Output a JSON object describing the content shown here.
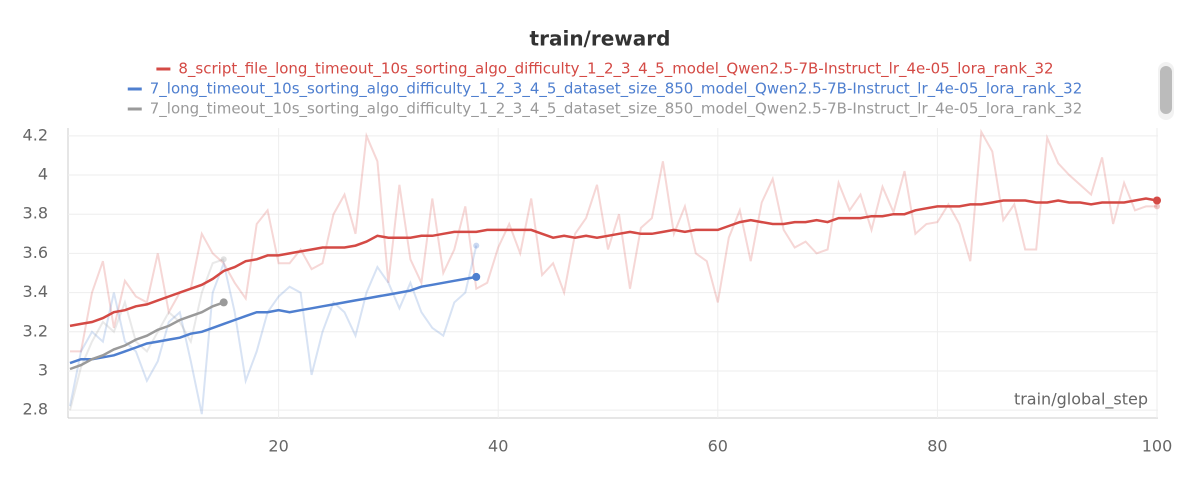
{
  "chart_data": {
    "type": "line",
    "title": "train/reward",
    "x_label": "train/global_step",
    "xlim": [
      1,
      100
    ],
    "xticks": [
      20,
      40,
      60,
      80,
      100
    ],
    "ylim": [
      2.76,
      4.24
    ],
    "yticks": [
      4.2,
      4,
      3.8,
      3.6,
      3.4,
      3.2,
      3,
      2.8
    ],
    "grid": true,
    "series": [
      {
        "name": "8_script_file_long_timeout_10s_sorting_algo_difficulty_1_2_3_4_5_model_Qwen2.5-7B-Instruct_lr_4e-05_lora_rank_32",
        "color": "#d44a45",
        "x": [
          1,
          2,
          3,
          4,
          5,
          6,
          7,
          8,
          9,
          10,
          11,
          12,
          13,
          14,
          15,
          16,
          17,
          18,
          19,
          20,
          21,
          22,
          23,
          24,
          25,
          26,
          27,
          28,
          29,
          30,
          31,
          32,
          33,
          34,
          35,
          36,
          37,
          38,
          39,
          40,
          41,
          42,
          43,
          44,
          45,
          46,
          47,
          48,
          49,
          50,
          51,
          52,
          53,
          54,
          55,
          56,
          57,
          58,
          59,
          60,
          61,
          62,
          63,
          64,
          65,
          66,
          67,
          68,
          69,
          70,
          71,
          72,
          73,
          74,
          75,
          76,
          77,
          78,
          79,
          80,
          81,
          82,
          83,
          84,
          85,
          86,
          87,
          88,
          89,
          90,
          91,
          92,
          93,
          94,
          95,
          96,
          97,
          98,
          99,
          100
        ],
        "values": [
          3.23,
          3.24,
          3.25,
          3.27,
          3.3,
          3.31,
          3.33,
          3.34,
          3.36,
          3.38,
          3.4,
          3.42,
          3.44,
          3.47,
          3.51,
          3.53,
          3.56,
          3.57,
          3.59,
          3.59,
          3.6,
          3.61,
          3.62,
          3.63,
          3.63,
          3.63,
          3.64,
          3.66,
          3.69,
          3.68,
          3.68,
          3.68,
          3.69,
          3.69,
          3.7,
          3.71,
          3.71,
          3.71,
          3.72,
          3.72,
          3.72,
          3.72,
          3.72,
          3.7,
          3.68,
          3.69,
          3.68,
          3.69,
          3.68,
          3.69,
          3.7,
          3.71,
          3.7,
          3.7,
          3.71,
          3.72,
          3.71,
          3.72,
          3.72,
          3.72,
          3.74,
          3.76,
          3.77,
          3.76,
          3.75,
          3.75,
          3.76,
          3.76,
          3.77,
          3.76,
          3.78,
          3.78,
          3.78,
          3.79,
          3.79,
          3.8,
          3.8,
          3.82,
          3.83,
          3.84,
          3.84,
          3.84,
          3.85,
          3.85,
          3.86,
          3.87,
          3.87,
          3.87,
          3.86,
          3.86,
          3.87,
          3.86,
          3.86,
          3.85,
          3.86,
          3.86,
          3.86,
          3.87,
          3.88,
          3.87
        ],
        "raw": [
          3.1,
          3.1,
          3.4,
          3.56,
          3.22,
          3.46,
          3.38,
          3.35,
          3.6,
          3.3,
          3.4,
          3.42,
          3.7,
          3.6,
          3.55,
          3.45,
          3.37,
          3.75,
          3.82,
          3.55,
          3.55,
          3.62,
          3.52,
          3.55,
          3.8,
          3.9,
          3.7,
          4.2,
          4.07,
          3.45,
          3.95,
          3.57,
          3.45,
          3.88,
          3.5,
          3.62,
          3.84,
          3.42,
          3.45,
          3.63,
          3.75,
          3.6,
          3.88,
          3.49,
          3.55,
          3.4,
          3.7,
          3.78,
          3.95,
          3.62,
          3.8,
          3.42,
          3.73,
          3.78,
          4.07,
          3.7,
          3.84,
          3.6,
          3.56,
          3.35,
          3.68,
          3.82,
          3.56,
          3.86,
          3.98,
          3.72,
          3.63,
          3.66,
          3.6,
          3.62,
          3.96,
          3.82,
          3.9,
          3.72,
          3.94,
          3.81,
          4.02,
          3.7,
          3.75,
          3.76,
          3.85,
          3.75,
          3.56,
          4.22,
          4.12,
          3.77,
          3.85,
          3.62,
          3.62,
          4.19,
          4.06,
          4.0,
          3.95,
          3.9,
          4.09,
          3.75,
          3.96,
          3.82,
          3.84,
          3.84
        ]
      },
      {
        "name": "7_long_timeout_10s_sorting_algo_difficulty_1_2_3_4_5_dataset_size_850_model_Qwen2.5-7B-Instruct_lr_4e-05_lora_rank_32",
        "color": "#4f7fcf",
        "x": [
          1,
          2,
          3,
          4,
          5,
          6,
          7,
          8,
          9,
          10,
          11,
          12,
          13,
          14,
          15,
          16,
          17,
          18,
          19,
          20,
          21,
          22,
          23,
          24,
          25,
          26,
          27,
          28,
          29,
          30,
          31,
          32,
          33,
          34,
          35,
          36,
          37,
          38
        ],
        "values": [
          3.04,
          3.06,
          3.06,
          3.07,
          3.08,
          3.1,
          3.12,
          3.14,
          3.15,
          3.16,
          3.17,
          3.19,
          3.2,
          3.22,
          3.24,
          3.26,
          3.28,
          3.3,
          3.3,
          3.31,
          3.3,
          3.31,
          3.32,
          3.33,
          3.34,
          3.35,
          3.36,
          3.37,
          3.38,
          3.39,
          3.4,
          3.41,
          3.43,
          3.44,
          3.45,
          3.46,
          3.47,
          3.48
        ],
        "raw": [
          2.82,
          3.1,
          3.2,
          3.15,
          3.4,
          3.15,
          3.1,
          2.95,
          3.05,
          3.25,
          3.3,
          3.05,
          2.78,
          3.4,
          3.55,
          3.3,
          2.95,
          3.1,
          3.3,
          3.38,
          3.43,
          3.4,
          2.98,
          3.2,
          3.35,
          3.3,
          3.18,
          3.4,
          3.53,
          3.45,
          3.32,
          3.45,
          3.3,
          3.22,
          3.18,
          3.35,
          3.4,
          3.64
        ]
      },
      {
        "name": "7_long_timeout_10s_sorting_algo_difficulty_1_2_3_4_5_dataset_size_850_model_Qwen2.5-7B-Instruct_lr_4e-05_lora_rank_32",
        "color": "#9a9a9a",
        "x": [
          1,
          2,
          3,
          4,
          5,
          6,
          7,
          8,
          9,
          10,
          11,
          12,
          13,
          14,
          15
        ],
        "values": [
          3.01,
          3.03,
          3.06,
          3.08,
          3.11,
          3.13,
          3.16,
          3.18,
          3.21,
          3.23,
          3.26,
          3.28,
          3.3,
          3.33,
          3.35
        ],
        "raw": [
          2.8,
          3.02,
          3.15,
          3.25,
          3.2,
          3.35,
          3.15,
          3.1,
          3.2,
          3.3,
          3.25,
          3.15,
          3.4,
          3.55,
          3.57
        ]
      }
    ]
  }
}
